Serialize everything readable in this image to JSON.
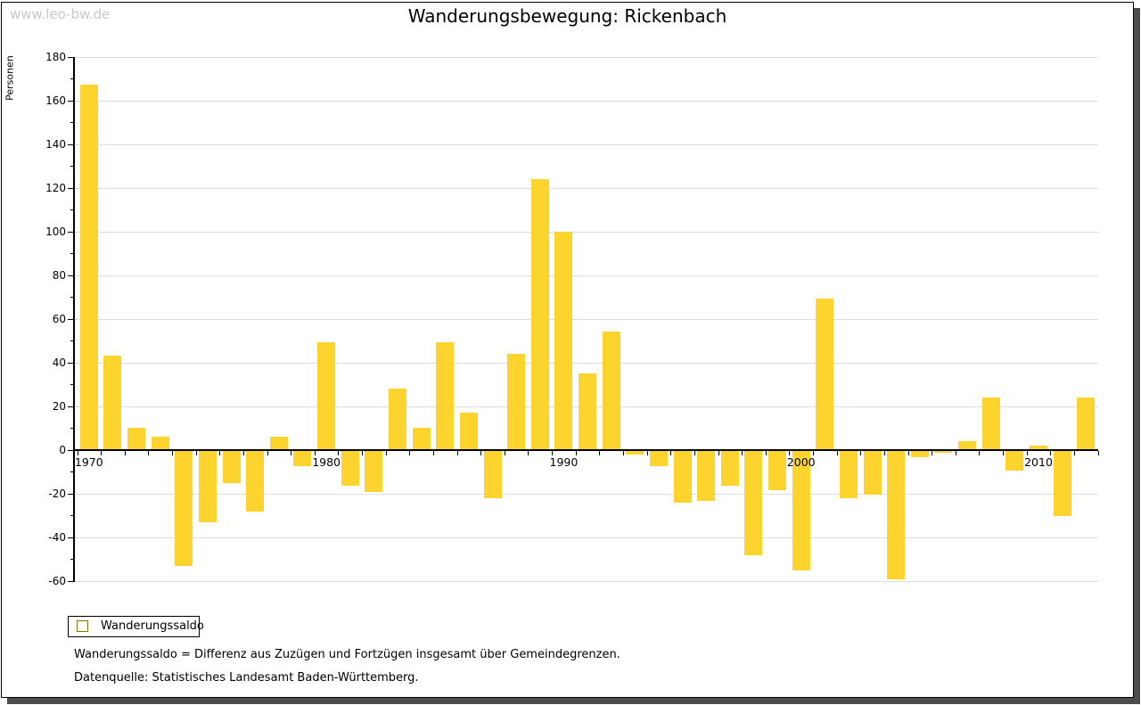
{
  "watermark": "www.leo-bw.de",
  "header": {
    "title": "Wanderungsbewegung: Rickenbach"
  },
  "legend": {
    "label": "Wanderungssaldo"
  },
  "footnotes": {
    "definition": "Wanderungssaldo = Differenz aus Zuzügen und Fortzügen insgesamt über Gemeindegrenzen.",
    "source": "Datenquelle: Statistisches Landesamt Baden-Württemberg."
  },
  "colors": {
    "bar": "#fcd42d",
    "swatch_border": "#8b7300",
    "grid": "#dcdcdc",
    "axis": "#000000",
    "watermark": "#c8c8c8",
    "frame_shadow": "#4d4d4d"
  },
  "chart_data": {
    "type": "bar",
    "title": "Wanderungsbewegung: Rickenbach",
    "xlabel": "",
    "ylabel": "Personen",
    "ylim": [
      -60,
      180
    ],
    "ytick_step": 20,
    "ytick_minor_step": 10,
    "yticks": [
      180,
      160,
      140,
      120,
      100,
      80,
      60,
      40,
      20,
      0,
      -20,
      -40,
      -60
    ],
    "grid": true,
    "legend_entries": [
      "Wanderungssaldo"
    ],
    "legend_position": "bottom-left",
    "decade_labels": [
      "1970",
      "1980",
      "1990",
      "2000",
      "2010"
    ],
    "categories": [
      1970,
      1971,
      1972,
      1973,
      1974,
      1975,
      1976,
      1977,
      1978,
      1979,
      1980,
      1981,
      1982,
      1983,
      1984,
      1985,
      1986,
      1987,
      1988,
      1989,
      1990,
      1991,
      1992,
      1993,
      1994,
      1995,
      1996,
      1997,
      1998,
      1999,
      2000,
      2001,
      2002,
      2003,
      2004,
      2005,
      2006,
      2007,
      2008,
      2009,
      2010,
      2011,
      2012
    ],
    "values": [
      167,
      43,
      10,
      6,
      -53,
      -33,
      -15,
      -28,
      6,
      -7,
      49,
      -16,
      -19,
      28,
      10,
      49,
      17,
      -22,
      44,
      124,
      100,
      35,
      54,
      -2,
      -7,
      -24,
      -23,
      -16,
      -48,
      -18,
      -55,
      69,
      -22,
      -20,
      -59,
      -3,
      -1,
      4,
      24,
      -9,
      2,
      -30,
      24
    ]
  }
}
